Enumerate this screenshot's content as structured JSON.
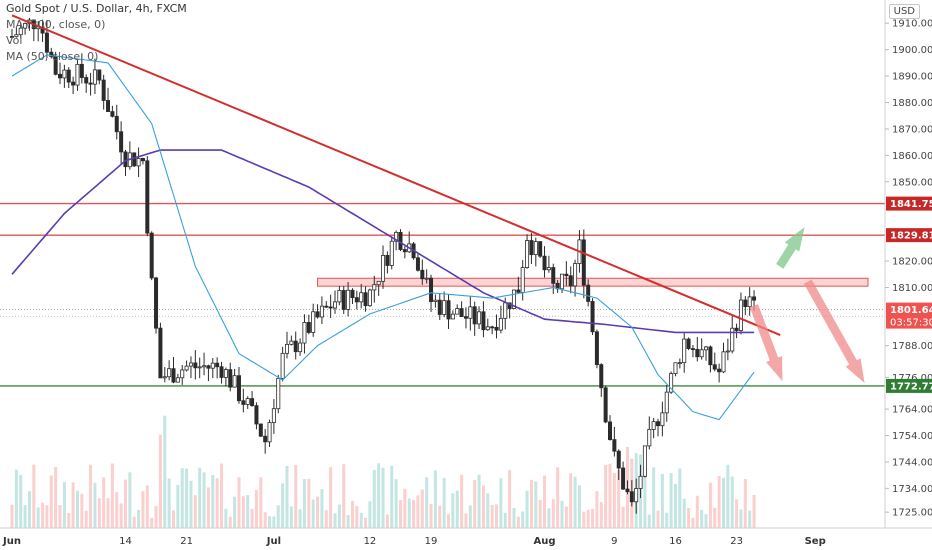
{
  "header": {
    "title": "Gold Spot / U.S. Dollar, 4h, FXCM",
    "ma1": "MA (200, close, 0)",
    "ma2": "Vol",
    "ma3": "MA (50, close, 0)",
    "currency": "USD"
  },
  "colors": {
    "up": "#26a69a",
    "down": "#ef5350",
    "candle_body": "#2b2b2b",
    "trendline": "#d32f2f",
    "resistance": "#e05555",
    "support": "#3a8a3a",
    "ma200": "#5b3bb2",
    "ma50": "#3aa0e0",
    "arrow_up": "#7fc68a",
    "arrow_down": "#f08a8a"
  },
  "chart_data": {
    "type": "candlestick",
    "symbol": "XAUUSD",
    "timeframe": "4h",
    "ylim": [
      1719,
      1915
    ],
    "y_ticks": [
      1910.0,
      1900.0,
      1890.0,
      1880.0,
      1870.0,
      1860.0,
      1850.0,
      1841.75,
      1829.81,
      1820.0,
      1810.0,
      1801.64,
      1788.0,
      1776.0,
      1772.77,
      1764.0,
      1754.0,
      1744.0,
      1734.0,
      1725.0
    ],
    "x_labels": [
      "Jun",
      "14",
      "21",
      "Jul",
      "12",
      "19",
      "Aug",
      "9",
      "16",
      "23",
      "Sep"
    ],
    "levels": {
      "resistance_1": 1841.75,
      "resistance_2": 1829.81,
      "support": 1772.77,
      "zone": [
        1810.5,
        1813.5
      ],
      "last_price": 1801.64,
      "countdown": "03:57:30"
    },
    "trendline": {
      "from": [
        "Jun 1",
        1913
      ],
      "to": [
        "Aug 28",
        1792
      ]
    },
    "price_path_keypoints": [
      [
        "Jun 1",
        1905
      ],
      [
        "Jun 4",
        1912
      ],
      [
        "Jun 6",
        1892
      ],
      [
        "Jun 9",
        1890
      ],
      [
        "Jun 11",
        1888
      ],
      [
        "Jun 14",
        1860
      ],
      [
        "Jun 16",
        1858
      ],
      [
        "Jun 17",
        1811
      ],
      [
        "Jun 18",
        1776
      ],
      [
        "Jun 21",
        1780
      ],
      [
        "Jun 25",
        1780
      ],
      [
        "Jun 28",
        1765
      ],
      [
        "Jun 30",
        1752
      ],
      [
        "Jul 2",
        1783
      ],
      [
        "Jul 5",
        1795
      ],
      [
        "Jul 8",
        1805
      ],
      [
        "Jul 12",
        1808
      ],
      [
        "Jul 15",
        1830
      ],
      [
        "Jul 17",
        1825
      ],
      [
        "Jul 19",
        1805
      ],
      [
        "Jul 22",
        1800
      ],
      [
        "Jul 26",
        1796
      ],
      [
        "Jul 29",
        1810
      ],
      [
        "Jul 30",
        1830
      ],
      [
        "Aug 2",
        1810
      ],
      [
        "Aug 4",
        1812
      ],
      [
        "Aug 5",
        1825
      ],
      [
        "Aug 6",
        1805
      ],
      [
        "Aug 8",
        1763
      ],
      [
        "Aug 9",
        1745
      ],
      [
        "Aug 11",
        1727
      ],
      [
        "Aug 13",
        1752
      ],
      [
        "Aug 16",
        1780
      ],
      [
        "Aug 17",
        1790
      ],
      [
        "Aug 19",
        1785
      ],
      [
        "Aug 21",
        1778
      ],
      [
        "Aug 23",
        1798
      ],
      [
        "Aug 24",
        1806
      ],
      [
        "Aug 25",
        1802
      ]
    ],
    "ma200_keypoints": [
      [
        "Jun 1",
        1815
      ],
      [
        "Jun 7",
        1838
      ],
      [
        "Jun 14",
        1858
      ],
      [
        "Jun 18",
        1862
      ],
      [
        "Jun 25",
        1862
      ],
      [
        "Jul 5",
        1848
      ],
      [
        "Jul 15",
        1828
      ],
      [
        "Jul 25",
        1808
      ],
      [
        "Aug 1",
        1798
      ],
      [
        "Aug 8",
        1796
      ],
      [
        "Aug 16",
        1793
      ],
      [
        "Aug 25",
        1793
      ]
    ],
    "ma50_keypoints": [
      [
        "Jun 1",
        1890
      ],
      [
        "Jun 5",
        1898
      ],
      [
        "Jun 12",
        1895
      ],
      [
        "Jun 17",
        1872
      ],
      [
        "Jun 22",
        1818
      ],
      [
        "Jun 27",
        1785
      ],
      [
        "Jul 2",
        1775
      ],
      [
        "Jul 6",
        1788
      ],
      [
        "Jul 12",
        1800
      ],
      [
        "Jul 19",
        1808
      ],
      [
        "Jul 26",
        1806
      ],
      [
        "Aug 2",
        1810
      ],
      [
        "Aug 7",
        1806
      ],
      [
        "Aug 11",
        1795
      ],
      [
        "Aug 14",
        1777
      ],
      [
        "Aug 18",
        1763
      ],
      [
        "Aug 21",
        1760
      ],
      [
        "Aug 25",
        1778
      ]
    ]
  }
}
